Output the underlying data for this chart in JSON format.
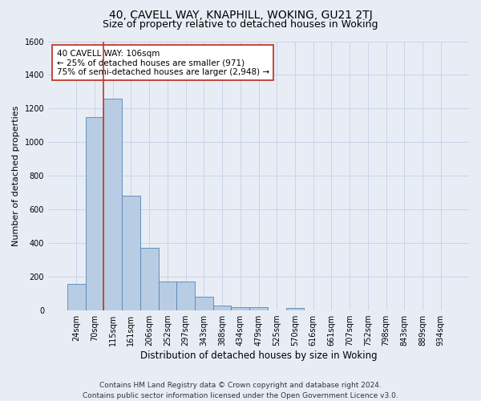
{
  "title": "40, CAVELL WAY, KNAPHILL, WOKING, GU21 2TJ",
  "subtitle": "Size of property relative to detached houses in Woking",
  "xlabel": "Distribution of detached houses by size in Woking",
  "ylabel": "Number of detached properties",
  "categories": [
    "24sqm",
    "70sqm",
    "115sqm",
    "161sqm",
    "206sqm",
    "252sqm",
    "297sqm",
    "343sqm",
    "388sqm",
    "434sqm",
    "479sqm",
    "525sqm",
    "570sqm",
    "616sqm",
    "661sqm",
    "707sqm",
    "752sqm",
    "798sqm",
    "843sqm",
    "889sqm",
    "934sqm"
  ],
  "values": [
    160,
    1150,
    1260,
    680,
    370,
    170,
    170,
    80,
    30,
    20,
    20,
    0,
    15,
    0,
    0,
    0,
    0,
    0,
    0,
    0,
    0
  ],
  "bar_color": "#b8cce4",
  "bar_edge_color": "#5585b5",
  "grid_color": "#c8d4e8",
  "background_color": "#e8edf5",
  "vline_color": "#c0392b",
  "vline_x_index": 1.5,
  "annotation_text": "40 CAVELL WAY: 106sqm\n← 25% of detached houses are smaller (971)\n75% of semi-detached houses are larger (2,948) →",
  "annotation_box_color": "#ffffff",
  "annotation_box_edge_color": "#c0392b",
  "ylim": [
    0,
    1600
  ],
  "yticks": [
    0,
    200,
    400,
    600,
    800,
    1000,
    1200,
    1400,
    1600
  ],
  "footer": "Contains HM Land Registry data © Crown copyright and database right 2024.\nContains public sector information licensed under the Open Government Licence v3.0.",
  "title_fontsize": 10,
  "subtitle_fontsize": 9,
  "xlabel_fontsize": 8.5,
  "ylabel_fontsize": 8,
  "tick_fontsize": 7,
  "annotation_fontsize": 7.5,
  "footer_fontsize": 6.5
}
